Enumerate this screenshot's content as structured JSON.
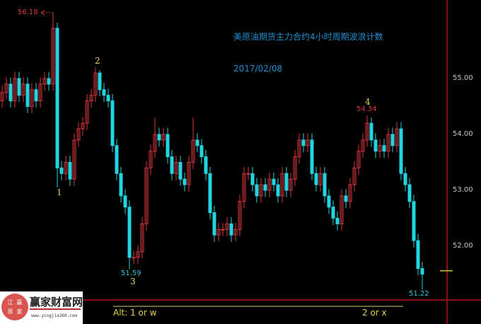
{
  "header": {
    "title": "美原油期货主力合约4小时周期波浪计数",
    "date": "2017/02/08"
  },
  "logo": {
    "name": "赢家财富网",
    "url": "www.yingjia360.com",
    "seal": [
      "江",
      "赢",
      "恩",
      "家"
    ]
  },
  "colors": {
    "up": "#d9363e",
    "down": "#22d3e0",
    "wave_label": "#e6d44a",
    "title": "#1e8fd0",
    "frame": "#b01818"
  },
  "chart_data": {
    "type": "candlestick",
    "y_axis": {
      "ticks": [
        "55.00",
        "54.00",
        "53.00",
        "52.00"
      ],
      "tick_values": [
        55,
        54,
        53,
        52
      ],
      "side": "right"
    },
    "ylim": [
      50.9,
      56.4
    ],
    "grid": false,
    "candles": [
      [
        54.6,
        54.87,
        54.48,
        54.75
      ],
      [
        54.75,
        55.02,
        54.63,
        54.9
      ],
      [
        54.9,
        55.02,
        54.48,
        54.6
      ],
      [
        54.6,
        55.12,
        54.48,
        55.0
      ],
      [
        55.0,
        55.12,
        54.58,
        54.7
      ],
      [
        54.7,
        55.02,
        54.58,
        54.9
      ],
      [
        54.9,
        55.02,
        54.38,
        54.5
      ],
      [
        54.5,
        54.92,
        54.38,
        54.8
      ],
      [
        54.8,
        54.92,
        54.48,
        54.6
      ],
      [
        54.6,
        55.02,
        54.48,
        54.9
      ],
      [
        54.9,
        55.12,
        54.78,
        55.0
      ],
      [
        55.0,
        55.12,
        54.78,
        54.9
      ],
      [
        54.9,
        56.18,
        54.78,
        55.9
      ],
      [
        55.9,
        56.0,
        53.05,
        53.4
      ],
      [
        53.4,
        53.52,
        53.18,
        53.3
      ],
      [
        53.3,
        53.62,
        53.18,
        53.5
      ],
      [
        53.5,
        53.62,
        53.08,
        53.2
      ],
      [
        53.2,
        54.02,
        53.08,
        53.9
      ],
      [
        53.9,
        54.22,
        53.78,
        54.1
      ],
      [
        54.1,
        54.32,
        53.98,
        54.2
      ],
      [
        54.2,
        54.72,
        54.08,
        54.6
      ],
      [
        54.6,
        54.82,
        54.48,
        54.7
      ],
      [
        54.7,
        55.2,
        54.58,
        55.1
      ],
      [
        55.1,
        55.15,
        54.68,
        54.8
      ],
      [
        54.8,
        54.92,
        54.58,
        54.7
      ],
      [
        54.7,
        54.82,
        54.48,
        54.6
      ],
      [
        54.6,
        54.72,
        53.68,
        53.8
      ],
      [
        53.8,
        53.92,
        53.18,
        53.3
      ],
      [
        53.3,
        53.42,
        52.78,
        52.9
      ],
      [
        52.9,
        53.02,
        52.58,
        52.7
      ],
      [
        52.7,
        52.82,
        51.59,
        51.8
      ],
      [
        51.8,
        51.92,
        51.68,
        51.8
      ],
      [
        51.8,
        52.02,
        51.68,
        51.9
      ],
      [
        51.9,
        52.52,
        51.78,
        52.4
      ],
      [
        52.4,
        53.52,
        52.28,
        53.4
      ],
      [
        53.4,
        53.82,
        53.28,
        53.7
      ],
      [
        53.7,
        54.3,
        53.58,
        54.0
      ],
      [
        54.0,
        54.12,
        53.78,
        53.9
      ],
      [
        53.9,
        54.12,
        53.78,
        54.0
      ],
      [
        54.0,
        54.12,
        53.48,
        53.6
      ],
      [
        53.6,
        53.72,
        53.18,
        53.3
      ],
      [
        53.3,
        53.62,
        53.18,
        53.5
      ],
      [
        53.5,
        53.62,
        53.08,
        53.2
      ],
      [
        53.2,
        53.32,
        52.98,
        53.1
      ],
      [
        53.1,
        53.62,
        52.98,
        53.5
      ],
      [
        53.5,
        54.3,
        53.38,
        53.9
      ],
      [
        53.9,
        54.02,
        53.68,
        53.8
      ],
      [
        53.8,
        53.92,
        53.48,
        53.6
      ],
      [
        53.6,
        53.72,
        53.18,
        53.3
      ],
      [
        53.3,
        53.42,
        52.48,
        52.6
      ],
      [
        52.6,
        52.72,
        52.08,
        52.2
      ],
      [
        52.2,
        52.42,
        52.08,
        52.3
      ],
      [
        52.3,
        52.42,
        52.18,
        52.3
      ],
      [
        52.3,
        52.52,
        52.18,
        52.4
      ],
      [
        52.4,
        52.52,
        52.08,
        52.2
      ],
      [
        52.2,
        52.42,
        52.08,
        52.3
      ],
      [
        52.3,
        52.92,
        52.18,
        52.8
      ],
      [
        52.8,
        53.42,
        52.68,
        53.3
      ],
      [
        53.3,
        53.42,
        53.18,
        53.3
      ],
      [
        53.3,
        53.42,
        52.98,
        53.1
      ],
      [
        53.1,
        53.22,
        52.78,
        52.9
      ],
      [
        52.9,
        53.22,
        52.78,
        53.1
      ],
      [
        53.1,
        53.22,
        52.88,
        53.0
      ],
      [
        53.0,
        53.32,
        52.88,
        53.2
      ],
      [
        53.2,
        53.32,
        52.98,
        53.1
      ],
      [
        53.1,
        53.22,
        52.78,
        52.9
      ],
      [
        52.9,
        53.42,
        52.78,
        53.3
      ],
      [
        53.3,
        53.42,
        52.88,
        53.0
      ],
      [
        53.0,
        53.32,
        52.88,
        53.2
      ],
      [
        53.2,
        53.72,
        53.08,
        53.6
      ],
      [
        53.6,
        54.02,
        53.48,
        53.9
      ],
      [
        53.9,
        54.02,
        53.68,
        53.8
      ],
      [
        53.8,
        54.02,
        53.68,
        53.9
      ],
      [
        53.9,
        54.02,
        53.18,
        53.3
      ],
      [
        53.3,
        53.42,
        52.98,
        53.1
      ],
      [
        53.1,
        53.42,
        52.98,
        53.3
      ],
      [
        53.3,
        53.42,
        52.78,
        52.9
      ],
      [
        52.9,
        53.02,
        52.58,
        52.7
      ],
      [
        52.7,
        52.82,
        52.38,
        52.5
      ],
      [
        52.5,
        52.62,
        52.28,
        52.4
      ],
      [
        52.4,
        53.02,
        52.28,
        52.9
      ],
      [
        52.9,
        53.02,
        52.68,
        52.8
      ],
      [
        52.8,
        53.22,
        52.68,
        53.1
      ],
      [
        53.1,
        53.52,
        52.98,
        53.4
      ],
      [
        53.4,
        53.82,
        53.28,
        53.7
      ],
      [
        53.7,
        54.02,
        53.58,
        53.9
      ],
      [
        53.9,
        54.34,
        53.78,
        54.2
      ],
      [
        54.2,
        54.3,
        53.78,
        53.9
      ],
      [
        53.9,
        54.02,
        53.58,
        53.7
      ],
      [
        53.7,
        53.92,
        53.58,
        53.8
      ],
      [
        53.8,
        53.92,
        53.58,
        53.7
      ],
      [
        53.7,
        54.12,
        53.58,
        54.0
      ],
      [
        54.0,
        54.12,
        53.68,
        53.8
      ],
      [
        53.8,
        54.22,
        53.68,
        54.1
      ],
      [
        54.1,
        54.22,
        53.18,
        53.3
      ],
      [
        53.3,
        53.42,
        52.98,
        53.1
      ],
      [
        53.1,
        53.22,
        52.68,
        52.8
      ],
      [
        52.8,
        52.92,
        51.98,
        52.1
      ],
      [
        52.1,
        52.22,
        51.48,
        51.6
      ],
      [
        51.6,
        51.72,
        51.22,
        51.5
      ]
    ],
    "annotations": {
      "waves": [
        {
          "label": "1",
          "candle": 13,
          "price": 53.05,
          "pos": "below"
        },
        {
          "label": "2",
          "candle": 22,
          "price": 55.2,
          "pos": "above"
        },
        {
          "label": "3",
          "candle": 30,
          "price": 51.59,
          "pos": "below"
        },
        {
          "label": "4",
          "candle": 86,
          "price": 54.34,
          "pos": "above"
        }
      ],
      "price_labels": [
        {
          "text": "56.18",
          "candle": 12,
          "price": 56.18,
          "kind": "high"
        },
        {
          "text": "54.34",
          "candle": 86,
          "price": 54.34,
          "kind": "high"
        },
        {
          "text": "51.59",
          "candle": 30,
          "price": 51.59,
          "kind": "low"
        },
        {
          "text": "51.22",
          "candle": 99,
          "price": 51.22,
          "kind": "low"
        }
      ],
      "alt": {
        "left": "Alt: 1 or w",
        "right": "2 or x"
      },
      "current_price": 51.56
    }
  }
}
